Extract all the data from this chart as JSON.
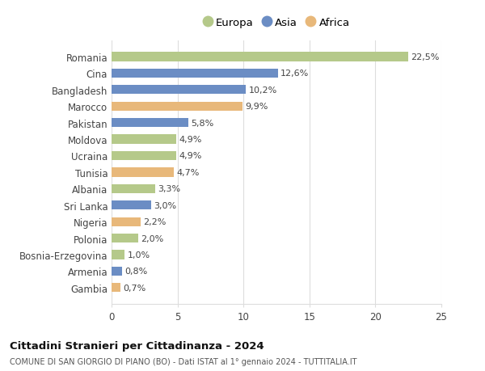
{
  "categories": [
    "Romania",
    "Cina",
    "Bangladesh",
    "Marocco",
    "Pakistan",
    "Moldova",
    "Ucraina",
    "Tunisia",
    "Albania",
    "Sri Lanka",
    "Nigeria",
    "Polonia",
    "Bosnia-Erzegovina",
    "Armenia",
    "Gambia"
  ],
  "values": [
    22.5,
    12.6,
    10.2,
    9.9,
    5.8,
    4.9,
    4.9,
    4.7,
    3.3,
    3.0,
    2.2,
    2.0,
    1.0,
    0.8,
    0.7
  ],
  "labels": [
    "22,5%",
    "12,6%",
    "10,2%",
    "9,9%",
    "5,8%",
    "4,9%",
    "4,9%",
    "4,7%",
    "3,3%",
    "3,0%",
    "2,2%",
    "2,0%",
    "1,0%",
    "0,8%",
    "0,7%"
  ],
  "continents": [
    "Europa",
    "Asia",
    "Asia",
    "Africa",
    "Asia",
    "Europa",
    "Europa",
    "Africa",
    "Europa",
    "Asia",
    "Africa",
    "Europa",
    "Europa",
    "Asia",
    "Africa"
  ],
  "colors": {
    "Europa": "#b5c98a",
    "Asia": "#6b8dc4",
    "Africa": "#e8b87a"
  },
  "xlim": [
    0,
    25
  ],
  "xticks": [
    0,
    5,
    10,
    15,
    20,
    25
  ],
  "title_bold": "Cittadini Stranieri per Cittadinanza - 2024",
  "subtitle": "COMUNE DI SAN GIORGIO DI PIANO (BO) - Dati ISTAT al 1° gennaio 2024 - TUTTITALIA.IT",
  "bg_color": "#ffffff",
  "bar_height": 0.55,
  "grid_color": "#dddddd"
}
